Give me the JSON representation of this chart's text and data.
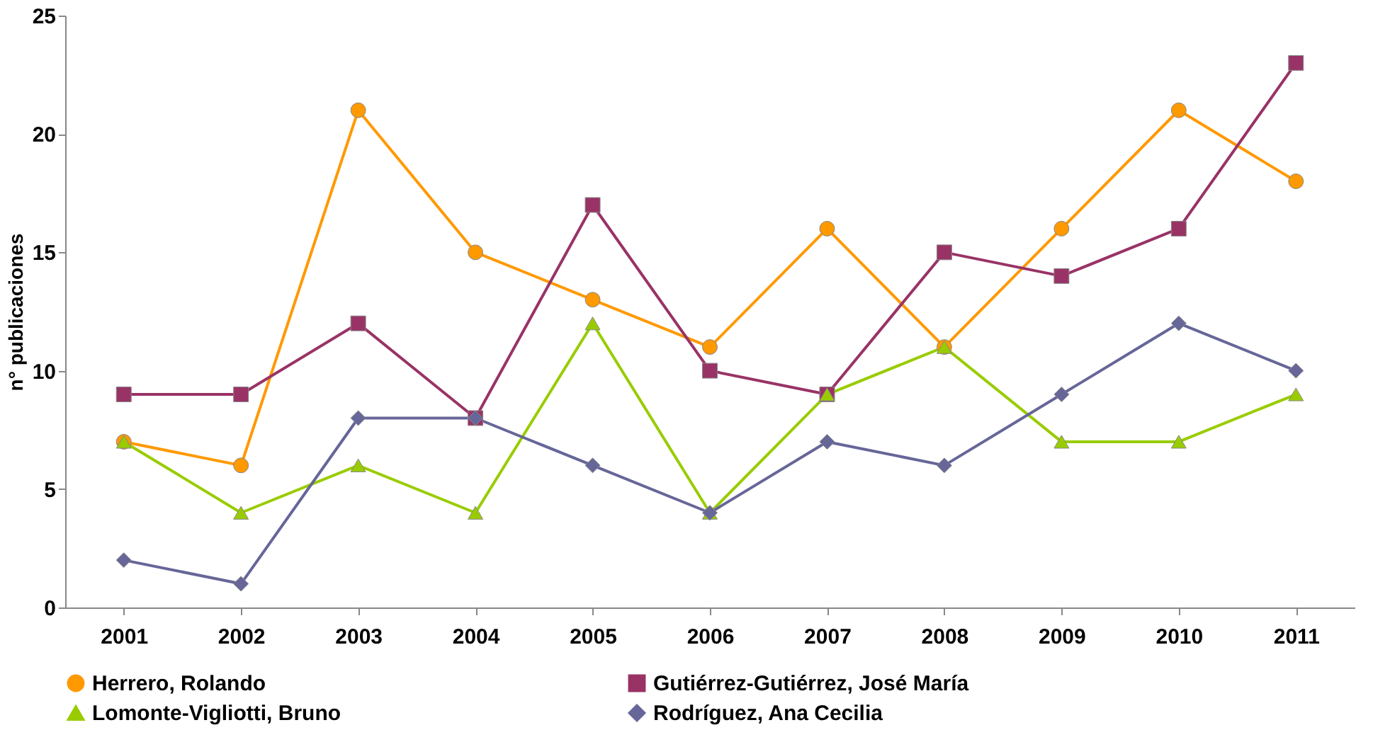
{
  "chart_data": {
    "type": "line",
    "ylabel": "n° publicaciones",
    "categories": [
      "2001",
      "2002",
      "2003",
      "2004",
      "2005",
      "2006",
      "2007",
      "2008",
      "2009",
      "2010",
      "2011"
    ],
    "series": [
      {
        "name": "Herrero, Rolando",
        "color": "#ff9900",
        "marker": "circle",
        "values": [
          7,
          6,
          21,
          15,
          13,
          11,
          16,
          11,
          16,
          21,
          18
        ]
      },
      {
        "name": "Gutiérrez-Gutiérrez, José María",
        "color": "#993366",
        "marker": "square",
        "values": [
          9,
          9,
          12,
          8,
          17,
          10,
          9,
          15,
          14,
          16,
          23
        ]
      },
      {
        "name": "Lomonte-Vigliotti, Bruno",
        "color": "#99cc00",
        "marker": "triangle",
        "values": [
          7,
          4,
          6,
          4,
          12,
          4,
          9,
          11,
          7,
          7,
          9
        ]
      },
      {
        "name": "Rodríguez, Ana Cecilia",
        "color": "#666699",
        "marker": "diamond",
        "values": [
          2,
          1,
          8,
          8,
          6,
          4,
          7,
          6,
          9,
          12,
          10
        ]
      }
    ],
    "ylim": [
      0,
      25
    ],
    "yticks": [
      0,
      5,
      10,
      15,
      20,
      25
    ],
    "grid": false,
    "legend": "bottom",
    "line_style": "solid"
  }
}
